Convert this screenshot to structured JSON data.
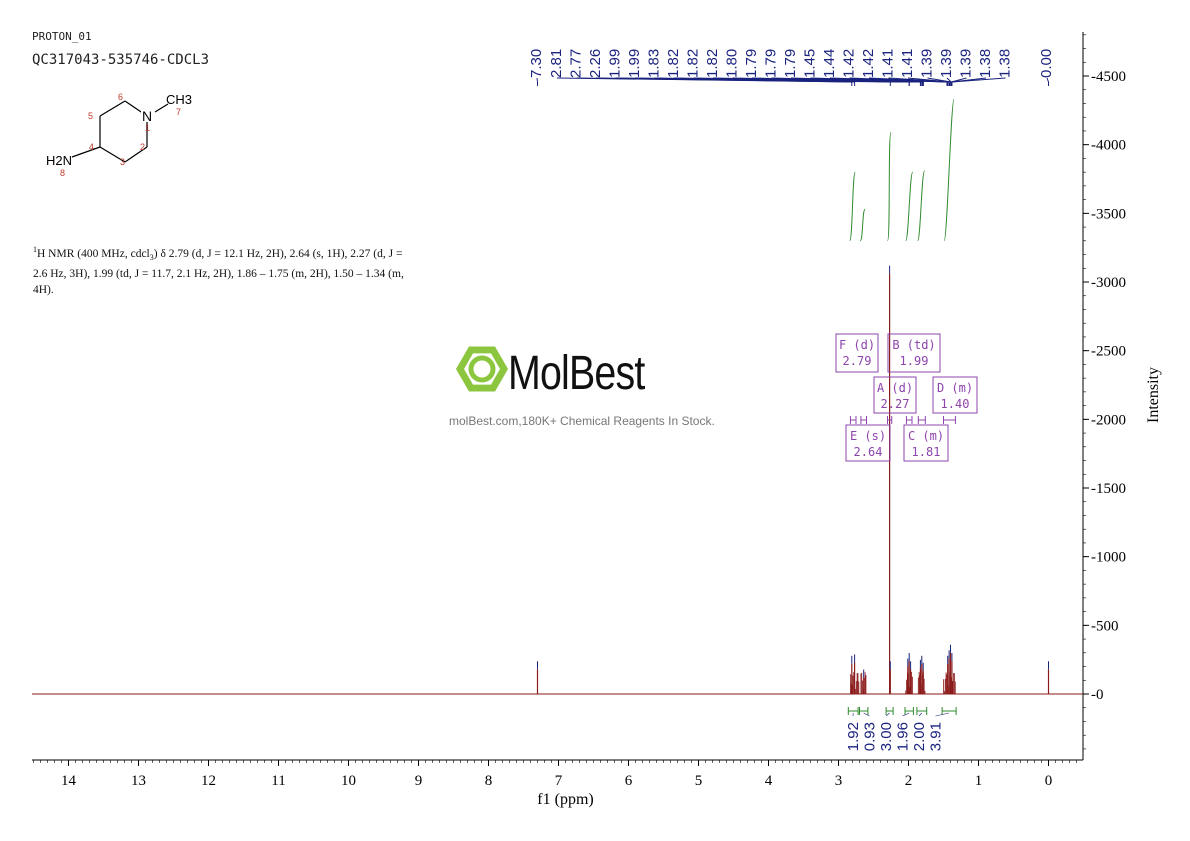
{
  "header": {
    "experiment": "PROTON_01",
    "sample": "QC317043-535746-CDCL3"
  },
  "description": {
    "nmr_line1": "H NMR (400 MHz, cdcl",
    "nmr_sub": "3",
    "nmr_text": ") δ 2.79 (d, J = 12.1 Hz, 2H), 2.64 (s, 1H), 2.27 (d, J = 2.6 Hz, 3H), 1.99 (td, J = 11.7, 2.1 Hz, 2H), 1.86 – 1.75 (m, 2H), 1.50 – 1.34 (m, 4H).",
    "sup": "1"
  },
  "structure": {
    "atoms": [
      "N",
      "CH3",
      "H2N"
    ],
    "atom_numbers": [
      "1",
      "2",
      "3",
      "4",
      "5",
      "6",
      "7",
      "8"
    ]
  },
  "watermark": {
    "brand": "MolBest",
    "tagline": "molBest.com,180K+ Chemical Reagents In Stock."
  },
  "colors": {
    "spectrum": "#8b1a1a",
    "peak_labels": "#1a237e",
    "integral": "#2e8b2e",
    "multiplet_box": "#8e44ad",
    "logo_green": "#8cc63f"
  },
  "chart_data": {
    "type": "line",
    "xlabel": "f1 (ppm)",
    "ylabel": "Intensity",
    "xlim": [
      14.5,
      -0.5
    ],
    "ylim": [
      -500,
      4800
    ],
    "x_ticks": [
      14,
      13,
      12,
      11,
      10,
      9,
      8,
      7,
      6,
      5,
      4,
      3,
      2,
      1,
      0
    ],
    "y_ticks": [
      0,
      500,
      1000,
      1500,
      2000,
      2500,
      3000,
      3500,
      4000,
      4500
    ],
    "peak_labels": [
      "7.30",
      "2.81",
      "2.77",
      "2.26",
      "1.99",
      "1.99",
      "1.83",
      "1.82",
      "1.82",
      "1.82",
      "1.80",
      "1.79",
      "1.79",
      "1.79",
      "1.45",
      "1.44",
      "1.42",
      "1.42",
      "1.41",
      "1.41",
      "1.39",
      "1.39",
      "1.39",
      "1.38",
      "1.38",
      "0.00"
    ],
    "peaks": [
      {
        "ppm": 7.3,
        "height": 180
      },
      {
        "ppm": 2.81,
        "height": 220
      },
      {
        "ppm": 2.77,
        "height": 230
      },
      {
        "ppm": 2.64,
        "height": 120
      },
      {
        "ppm": 2.27,
        "height": 3060
      },
      {
        "ppm": 2.26,
        "height": 180
      },
      {
        "ppm": 2.01,
        "height": 200
      },
      {
        "ppm": 1.99,
        "height": 240
      },
      {
        "ppm": 1.97,
        "height": 180
      },
      {
        "ppm": 1.83,
        "height": 190
      },
      {
        "ppm": 1.81,
        "height": 220
      },
      {
        "ppm": 1.79,
        "height": 170
      },
      {
        "ppm": 1.44,
        "height": 220
      },
      {
        "ppm": 1.42,
        "height": 260
      },
      {
        "ppm": 1.4,
        "height": 300
      },
      {
        "ppm": 1.38,
        "height": 240
      },
      {
        "ppm": 0.0,
        "height": 180
      }
    ],
    "integrals": [
      {
        "from": 2.86,
        "to": 2.72,
        "value": "1.92"
      },
      {
        "from": 2.7,
        "to": 2.58,
        "value": "0.93"
      },
      {
        "from": 2.32,
        "to": 2.22,
        "value": "3.00"
      },
      {
        "from": 2.05,
        "to": 1.93,
        "value": "1.96"
      },
      {
        "from": 1.88,
        "to": 1.74,
        "value": "2.00"
      },
      {
        "from": 1.52,
        "to": 1.32,
        "value": "3.91"
      }
    ],
    "multiplets": [
      {
        "letter": "F (d)",
        "shift": "2.79"
      },
      {
        "letter": "B (td)",
        "shift": "1.99"
      },
      {
        "letter": "A (d)",
        "shift": "2.27"
      },
      {
        "letter": "D (m)",
        "shift": "1.40"
      },
      {
        "letter": "E (s)",
        "shift": "2.64"
      },
      {
        "letter": "C (m)",
        "shift": "1.81"
      }
    ]
  }
}
